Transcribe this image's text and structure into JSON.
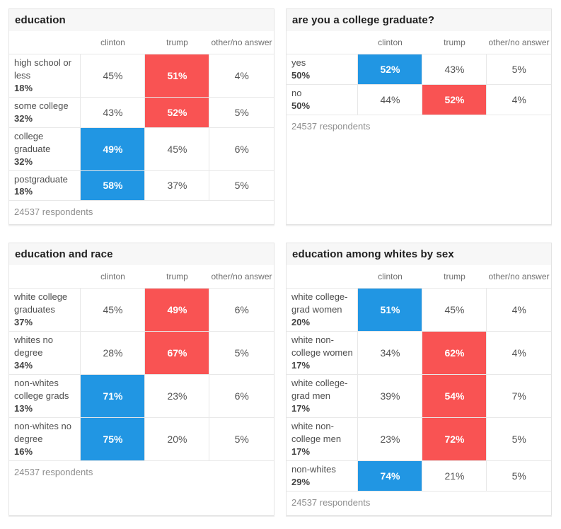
{
  "colors": {
    "clinton": "#2196e3",
    "trump": "#f95353",
    "panel_header_bg": "#f7f7f7"
  },
  "chart_data": [
    {
      "type": "table",
      "title": "education",
      "columns": [
        "clinton",
        "trump",
        "other/no answer"
      ],
      "rows": [
        {
          "label": "high school or less",
          "share": "18%",
          "values": [
            "45%",
            "51%",
            "4%"
          ],
          "winner": "trump"
        },
        {
          "label": "some college",
          "share": "32%",
          "values": [
            "43%",
            "52%",
            "5%"
          ],
          "winner": "trump"
        },
        {
          "label": "college graduate",
          "share": "32%",
          "values": [
            "49%",
            "45%",
            "6%"
          ],
          "winner": "clinton"
        },
        {
          "label": "postgraduate",
          "share": "18%",
          "values": [
            "58%",
            "37%",
            "5%"
          ],
          "winner": "clinton"
        }
      ],
      "footer": "24537 respondents"
    },
    {
      "type": "table",
      "title": "are you a college graduate?",
      "columns": [
        "clinton",
        "trump",
        "other/no answer"
      ],
      "rows": [
        {
          "label": "yes",
          "share": "50%",
          "values": [
            "52%",
            "43%",
            "5%"
          ],
          "winner": "clinton"
        },
        {
          "label": "no",
          "share": "50%",
          "values": [
            "44%",
            "52%",
            "4%"
          ],
          "winner": "trump"
        }
      ],
      "footer": "24537 respondents"
    },
    {
      "type": "table",
      "title": "education and race",
      "columns": [
        "clinton",
        "trump",
        "other/no answer"
      ],
      "rows": [
        {
          "label": "white college graduates",
          "share": "37%",
          "values": [
            "45%",
            "49%",
            "6%"
          ],
          "winner": "trump"
        },
        {
          "label": "whites no degree",
          "share": "34%",
          "values": [
            "28%",
            "67%",
            "5%"
          ],
          "winner": "trump"
        },
        {
          "label": "non-whites college grads",
          "share": "13%",
          "values": [
            "71%",
            "23%",
            "6%"
          ],
          "winner": "clinton"
        },
        {
          "label": "non-whites no degree",
          "share": "16%",
          "values": [
            "75%",
            "20%",
            "5%"
          ],
          "winner": "clinton"
        }
      ],
      "footer": "24537 respondents"
    },
    {
      "type": "table",
      "title": "education among whites by sex",
      "columns": [
        "clinton",
        "trump",
        "other/no answer"
      ],
      "rows": [
        {
          "label": "white college-grad women",
          "share": "20%",
          "values": [
            "51%",
            "45%",
            "4%"
          ],
          "winner": "clinton"
        },
        {
          "label": "white non-college women",
          "share": "17%",
          "values": [
            "34%",
            "62%",
            "4%"
          ],
          "winner": "trump"
        },
        {
          "label": "white college-grad men",
          "share": "17%",
          "values": [
            "39%",
            "54%",
            "7%"
          ],
          "winner": "trump"
        },
        {
          "label": "white non-college men",
          "share": "17%",
          "values": [
            "23%",
            "72%",
            "5%"
          ],
          "winner": "trump"
        },
        {
          "label": "non-whites",
          "share": "29%",
          "values": [
            "74%",
            "21%",
            "5%"
          ],
          "winner": "clinton"
        }
      ],
      "footer": "24537 respondents"
    }
  ]
}
